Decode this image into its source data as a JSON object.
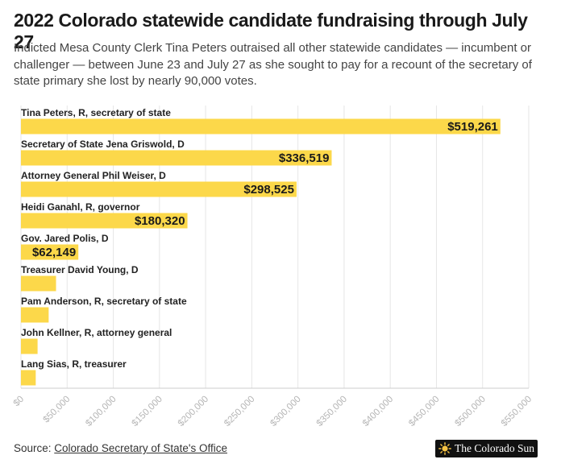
{
  "header": {
    "title": "2022 Colorado statewide candidate fundraising through July 27",
    "subtitle": "Indicted Mesa County Clerk Tina Peters outraised all other statewide candidates — incumbent or challenger — between June 23 and July 27 as she sought to pay for a recount of the secretary of state primary she lost by nearly 90,000 votes."
  },
  "footer": {
    "source_prefix": "Source: ",
    "source_link": "Colorado Secretary of State's Office"
  },
  "logo": {
    "text": "The Colorado Sun",
    "icon": "sun-icon"
  },
  "colors": {
    "bar": "#fcd84a",
    "grid": "#e6e6e6",
    "axis_text": "#b5b5b5",
    "label_text": "#222222"
  },
  "chart_data": {
    "type": "bar",
    "orientation": "horizontal",
    "categories": [
      "Tina Peters, R, secretary of state",
      "Secretary of State Jena Griswold, D",
      "Attorney General Phil Weiser, D",
      "Heidi Ganahl, R, governor",
      "Gov. Jared Polis, D",
      "Treasurer David Young, D",
      "Pam Anderson, R, secretary of state",
      "John Kellner, R, attorney general",
      "Lang Sias, R, treasurer"
    ],
    "values": [
      519261,
      336519,
      298525,
      180320,
      62149,
      38000,
      30000,
      18000,
      16000
    ],
    "data_labels": [
      "$519,261",
      "$336,519",
      "$298,525",
      "$180,320",
      "$62,149",
      "",
      "",
      "",
      ""
    ],
    "xlim": [
      0,
      550000
    ],
    "xticks": [
      "$0",
      "$50,000",
      "$100,000",
      "$150,000",
      "$200,000",
      "$250,000",
      "$300,000",
      "$350,000",
      "$400,000",
      "$450,000",
      "$500,000",
      "$550,000"
    ],
    "grid": true,
    "legend": "none"
  }
}
